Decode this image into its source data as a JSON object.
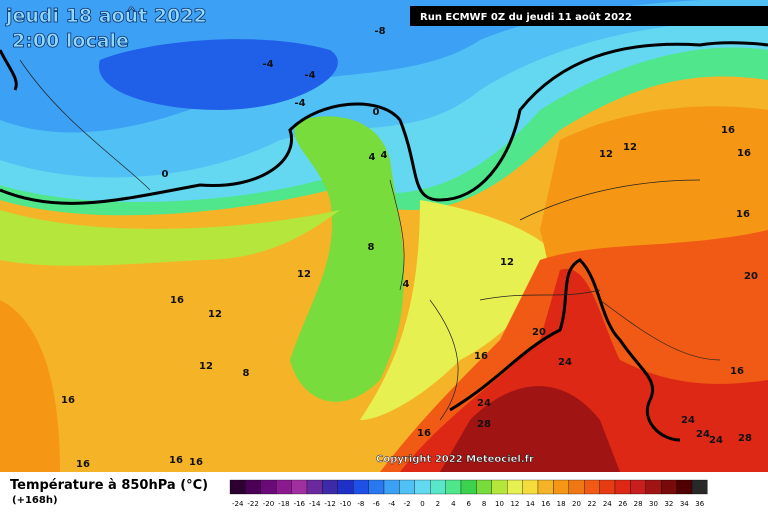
{
  "header": {
    "date": "jeudi 18 août 2022",
    "time": "2:00 locale",
    "run": "Run ECMWF 0Z du jeudi 11 août 2022"
  },
  "map": {
    "copyright": "Copyright 2022 Meteociel.fr",
    "contour_labels": [
      "-8",
      "-4",
      "-4",
      "-4",
      "0",
      "0",
      "4",
      "4",
      "8",
      "12",
      "16",
      "12",
      "4",
      "12",
      "12",
      "16",
      "16",
      "16",
      "12",
      "20",
      "20",
      "16",
      "24",
      "12",
      "8",
      "16",
      "16",
      "24",
      "28",
      "24",
      "24",
      "24",
      "28",
      "16",
      "16",
      "16",
      "16"
    ]
  },
  "legend": {
    "title": "Température à 850hPa (°C)",
    "lead": "(+168h)",
    "ticks": [
      -24,
      -22,
      -20,
      -18,
      -16,
      -14,
      -12,
      -10,
      -8,
      -6,
      -4,
      -2,
      0,
      2,
      4,
      6,
      8,
      10,
      12,
      14,
      16,
      18,
      20,
      22,
      24,
      26,
      28,
      30,
      32,
      34,
      36
    ],
    "colors": [
      "#2d0032",
      "#4b0055",
      "#6a0a78",
      "#8b1a8f",
      "#a030a0",
      "#6a2a9e",
      "#3c2aa8",
      "#1e30c8",
      "#1e50e6",
      "#2878f0",
      "#3ca0f5",
      "#50c0f5",
      "#64d8f0",
      "#5ae6c8",
      "#50e68c",
      "#3cd250",
      "#78dc3c",
      "#b4e63c",
      "#e6f050",
      "#f5dc3c",
      "#f5b428",
      "#f59614",
      "#f07814",
      "#f05a14",
      "#e63c14",
      "#dc2814",
      "#c81e1e",
      "#a01414",
      "#780a0a",
      "#500000",
      "#282828"
    ]
  }
}
